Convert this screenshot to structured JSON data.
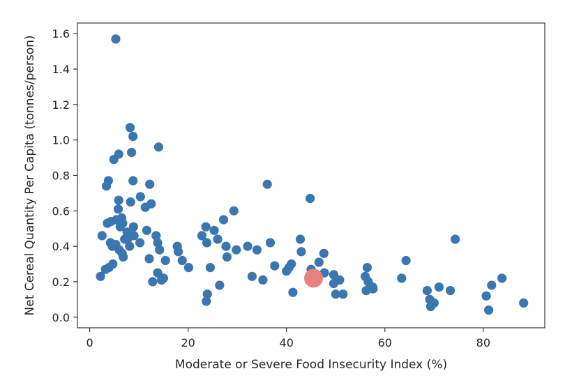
{
  "chart_data": {
    "type": "scatter",
    "xlabel": "Moderate or Severe Food Insecurity Index (%)",
    "ylabel": "Net Cereal Quantity Per Capita (tonnes/person)",
    "xlim": [
      -2.5,
      92.5
    ],
    "ylim": [
      -0.06,
      1.66
    ],
    "x_ticks": [
      0,
      20,
      40,
      60,
      80
    ],
    "x_tick_labels": [
      "0",
      "20",
      "40",
      "60",
      "80"
    ],
    "y_ticks": [
      0.0,
      0.2,
      0.4,
      0.6,
      0.8,
      1.0,
      1.2,
      1.4,
      1.6
    ],
    "y_tick_labels": [
      "0.0",
      "0.2",
      "0.4",
      "0.6",
      "0.8",
      "1.0",
      "1.2",
      "1.4",
      "1.6"
    ],
    "grid": false,
    "legend": "none",
    "colors": {
      "points": "#3a76af",
      "highlight": "#e58380"
    },
    "points": [
      [
        5.3,
        1.57
      ],
      [
        8.2,
        1.07
      ],
      [
        8.8,
        1.02
      ],
      [
        5.9,
        0.92
      ],
      [
        8.5,
        0.93
      ],
      [
        4.9,
        0.89
      ],
      [
        14.0,
        0.96
      ],
      [
        3.8,
        0.77
      ],
      [
        3.4,
        0.74
      ],
      [
        8.8,
        0.77
      ],
      [
        12.2,
        0.75
      ],
      [
        10.3,
        0.68
      ],
      [
        5.9,
        0.66
      ],
      [
        8.3,
        0.65
      ],
      [
        12.5,
        0.64
      ],
      [
        11.3,
        0.62
      ],
      [
        5.8,
        0.61
      ],
      [
        2.5,
        0.46
      ],
      [
        3.6,
        0.53
      ],
      [
        4.3,
        0.54
      ],
      [
        5.4,
        0.55
      ],
      [
        6.5,
        0.56
      ],
      [
        6.7,
        0.53
      ],
      [
        6.2,
        0.51
      ],
      [
        7.6,
        0.48
      ],
      [
        8.9,
        0.51
      ],
      [
        9.0,
        0.46
      ],
      [
        11.6,
        0.49
      ],
      [
        13.5,
        0.46
      ],
      [
        4.2,
        0.42
      ],
      [
        4.6,
        0.4
      ],
      [
        5.3,
        0.41
      ],
      [
        6.0,
        0.38
      ],
      [
        6.6,
        0.36
      ],
      [
        6.8,
        0.34
      ],
      [
        7.1,
        0.44
      ],
      [
        7.7,
        0.44
      ],
      [
        8.1,
        0.4
      ],
      [
        10.2,
        0.42
      ],
      [
        13.8,
        0.42
      ],
      [
        14.2,
        0.38
      ],
      [
        12.1,
        0.33
      ],
      [
        15.4,
        0.32
      ],
      [
        3.2,
        0.27
      ],
      [
        3.9,
        0.28
      ],
      [
        4.7,
        0.3
      ],
      [
        2.2,
        0.23
      ],
      [
        12.8,
        0.2
      ],
      [
        13.8,
        0.25
      ],
      [
        14.6,
        0.21
      ],
      [
        15.0,
        0.22
      ],
      [
        17.8,
        0.4
      ],
      [
        18.0,
        0.37
      ],
      [
        18.8,
        0.32
      ],
      [
        20.1,
        0.28
      ],
      [
        22.8,
        0.46
      ],
      [
        23.6,
        0.51
      ],
      [
        23.8,
        0.42
      ],
      [
        25.3,
        0.49
      ],
      [
        26.0,
        0.44
      ],
      [
        27.2,
        0.55
      ],
      [
        29.3,
        0.6
      ],
      [
        27.7,
        0.4
      ],
      [
        27.9,
        0.34
      ],
      [
        29.8,
        0.38
      ],
      [
        24.5,
        0.28
      ],
      [
        26.4,
        0.18
      ],
      [
        23.9,
        0.13
      ],
      [
        23.7,
        0.09
      ],
      [
        32.1,
        0.4
      ],
      [
        34.0,
        0.38
      ],
      [
        33.0,
        0.23
      ],
      [
        35.2,
        0.21
      ],
      [
        36.1,
        0.75
      ],
      [
        36.7,
        0.42
      ],
      [
        37.6,
        0.29
      ],
      [
        40.0,
        0.26
      ],
      [
        40.5,
        0.28
      ],
      [
        41.0,
        0.3
      ],
      [
        41.3,
        0.14
      ],
      [
        42.8,
        0.44
      ],
      [
        43.0,
        0.37
      ],
      [
        44.8,
        0.67
      ],
      [
        45.0,
        0.27
      ],
      [
        46.6,
        0.31
      ],
      [
        47.6,
        0.36
      ],
      [
        47.7,
        0.25
      ],
      [
        49.6,
        0.24
      ],
      [
        49.6,
        0.19
      ],
      [
        50.0,
        0.13
      ],
      [
        50.8,
        0.21
      ],
      [
        51.5,
        0.13
      ],
      [
        56.0,
        0.23
      ],
      [
        56.4,
        0.28
      ],
      [
        56.6,
        0.2
      ],
      [
        56.2,
        0.15
      ],
      [
        57.5,
        0.17
      ],
      [
        57.6,
        0.16
      ],
      [
        63.4,
        0.22
      ],
      [
        64.3,
        0.32
      ],
      [
        68.6,
        0.15
      ],
      [
        69.1,
        0.1
      ],
      [
        69.3,
        0.06
      ],
      [
        70.0,
        0.08
      ],
      [
        71.0,
        0.17
      ],
      [
        73.3,
        0.15
      ],
      [
        74.3,
        0.44
      ],
      [
        80.6,
        0.12
      ],
      [
        81.1,
        0.04
      ],
      [
        81.7,
        0.18
      ],
      [
        83.8,
        0.22
      ],
      [
        88.2,
        0.08
      ]
    ],
    "highlight_point": [
      45.5,
      0.22
    ]
  }
}
